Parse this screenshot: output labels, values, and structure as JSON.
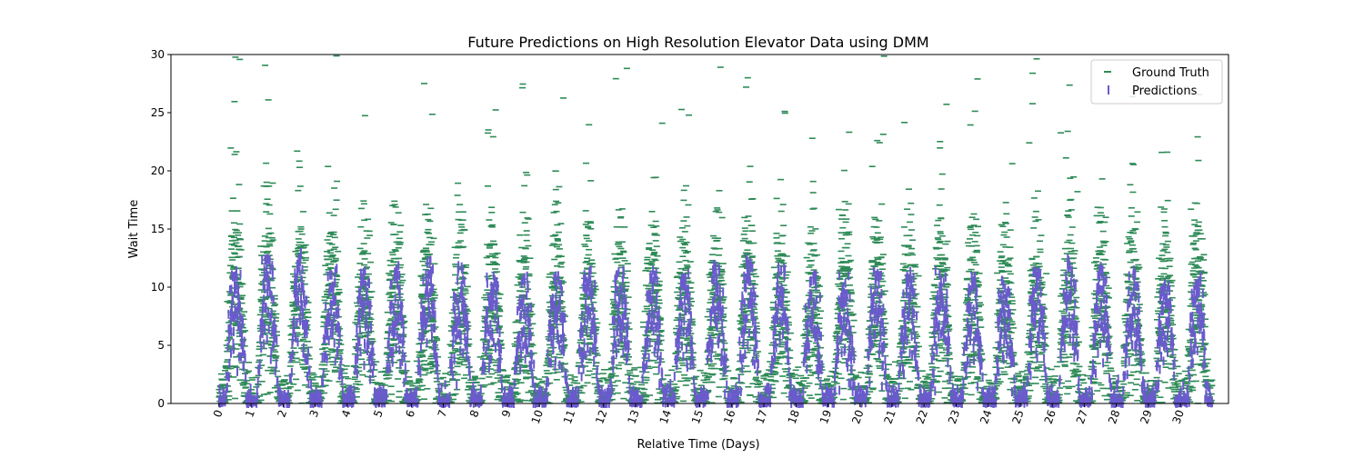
{
  "chart_data": {
    "type": "scatter",
    "title": "Future Predictions on High Resolution Elevator Data using DMM",
    "xlabel": "Relative Time (Days)",
    "ylabel": "Wait Time",
    "xlim": [
      -1.5,
      31.5
    ],
    "ylim": [
      0,
      30
    ],
    "x_ticks": [
      0,
      1,
      2,
      3,
      4,
      5,
      6,
      7,
      8,
      9,
      10,
      11,
      12,
      13,
      14,
      15,
      16,
      17,
      18,
      19,
      20,
      21,
      22,
      23,
      24,
      25,
      26,
      27,
      28,
      29,
      30
    ],
    "x_tick_labels": [
      "0",
      "1",
      "2",
      "3",
      "4",
      "5",
      "6",
      "7",
      "8",
      "9",
      "10",
      "11",
      "12",
      "13",
      "14",
      "15",
      "16",
      "17",
      "18",
      "19",
      "20",
      "21",
      "22",
      "23",
      "24",
      "25",
      "26",
      "27",
      "28",
      "29",
      "30"
    ],
    "x_tick_rotation": "70deg",
    "y_ticks": [
      0,
      5,
      10,
      15,
      20,
      25,
      30
    ],
    "y_tick_labels": [
      "0",
      "5",
      "10",
      "15",
      "20",
      "25",
      "30"
    ],
    "grid": false,
    "legend_position": "top-right",
    "pattern": "daily cycle: wait time near 0 overnight, rising to a daytime peak, for each of 31 days",
    "series": [
      {
        "name": "Ground Truth",
        "marker": "horizontal dash",
        "color": "#2e8b57",
        "daily_peak_typical": 12,
        "daily_outliers_max": 30,
        "daily_peak_y_per_day": [
          11,
          12,
          12,
          11,
          11,
          11,
          11,
          11,
          11,
          10,
          11,
          11,
          11,
          11,
          11,
          11,
          11,
          11,
          10,
          11,
          11,
          11,
          11,
          11,
          11,
          11,
          11,
          11,
          11,
          11,
          11
        ]
      },
      {
        "name": "Predictions",
        "marker": "vertical line",
        "color": "#6a5acd",
        "daily_peak_y_per_day": [
          10.5,
          11.5,
          12,
          11,
          10.5,
          11,
          11.5,
          11,
          10.5,
          10,
          10.5,
          10.5,
          10.5,
          10.5,
          10.5,
          11,
          11.5,
          11,
          10.5,
          10,
          10.5,
          10.5,
          10.5,
          10,
          10,
          10.5,
          11.5,
          11,
          10.5,
          10,
          10
        ]
      }
    ]
  }
}
